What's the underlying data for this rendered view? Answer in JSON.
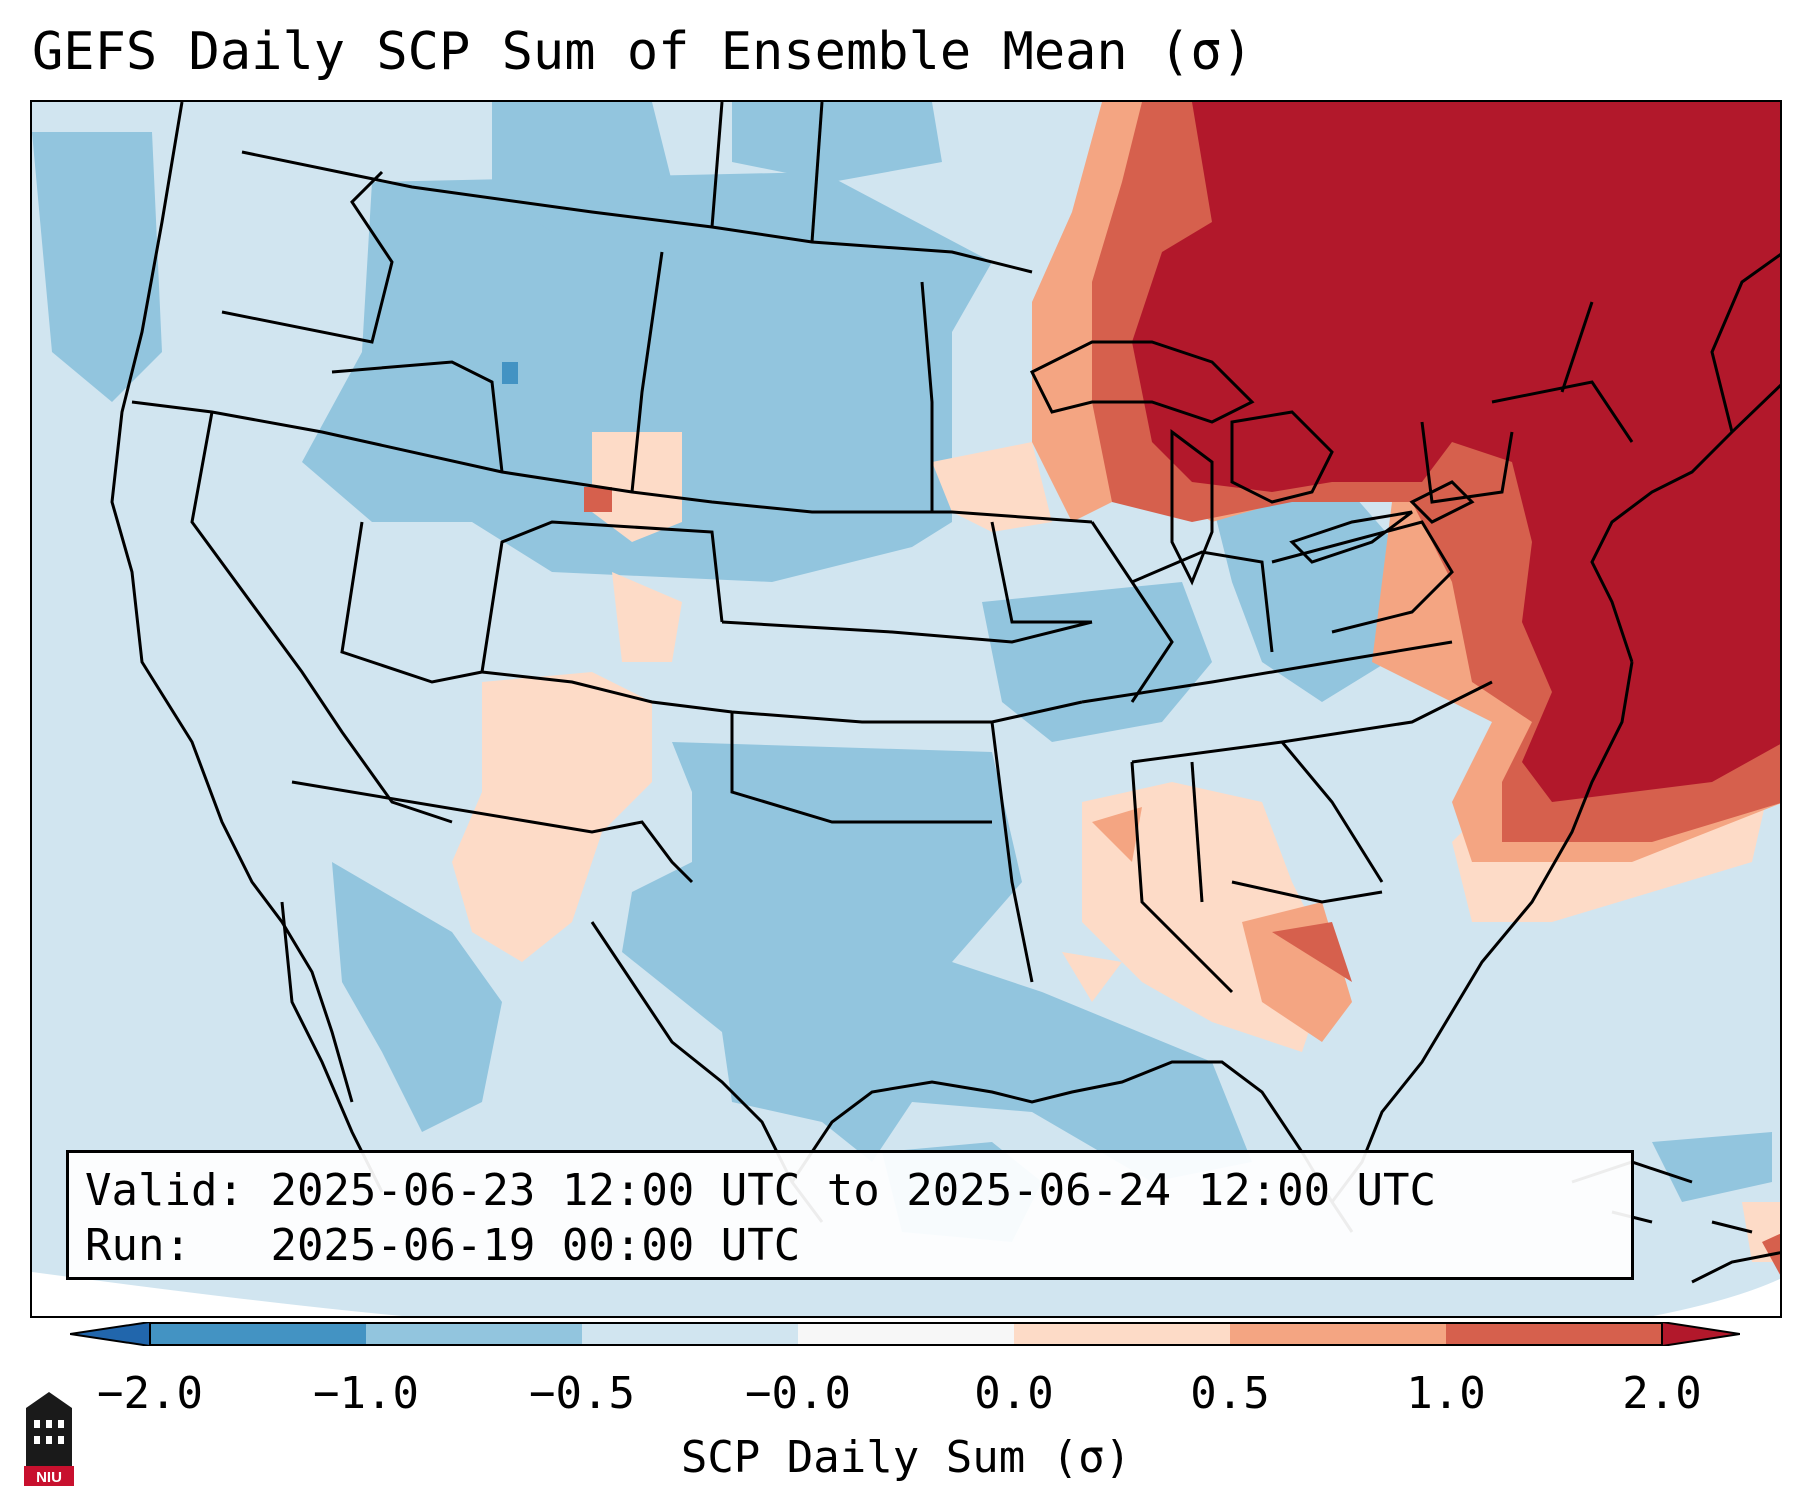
{
  "title": "GEFS Daily SCP Sum of Ensemble Mean (σ)",
  "info": {
    "valid_label": "Valid:",
    "valid_text": "2025-06-23 12:00 UTC to 2025-06-24 12:00 UTC",
    "run_label": "Run:",
    "run_text": "2025-06-19 00:00 UTC"
  },
  "colorbar": {
    "label": "SCP Daily Sum (σ)",
    "ticks": [
      "−2.0",
      "−1.0",
      "−0.5",
      "−0.0",
      "0.0",
      "0.5",
      "1.0",
      "2.0"
    ],
    "bins": [
      {
        "range": "< -2.0",
        "color": "#2166ac"
      },
      {
        "range": "-2.0 to -1.0",
        "color": "#4393c3"
      },
      {
        "range": "-1.0 to -0.5",
        "color": "#92c5de"
      },
      {
        "range": "-0.5 to -0.0",
        "color": "#d1e5f0"
      },
      {
        "range": "-0.0 to 0.0",
        "color": "#f7f7f7"
      },
      {
        "range": "0.0 to 0.5",
        "color": "#fddbc7"
      },
      {
        "range": "0.5 to 1.0",
        "color": "#f4a582"
      },
      {
        "range": "1.0 to 2.0",
        "color": "#d6604d"
      },
      {
        "range": "> 2.0",
        "color": "#b2182b"
      }
    ]
  },
  "logo": {
    "text": "NIU"
  }
}
